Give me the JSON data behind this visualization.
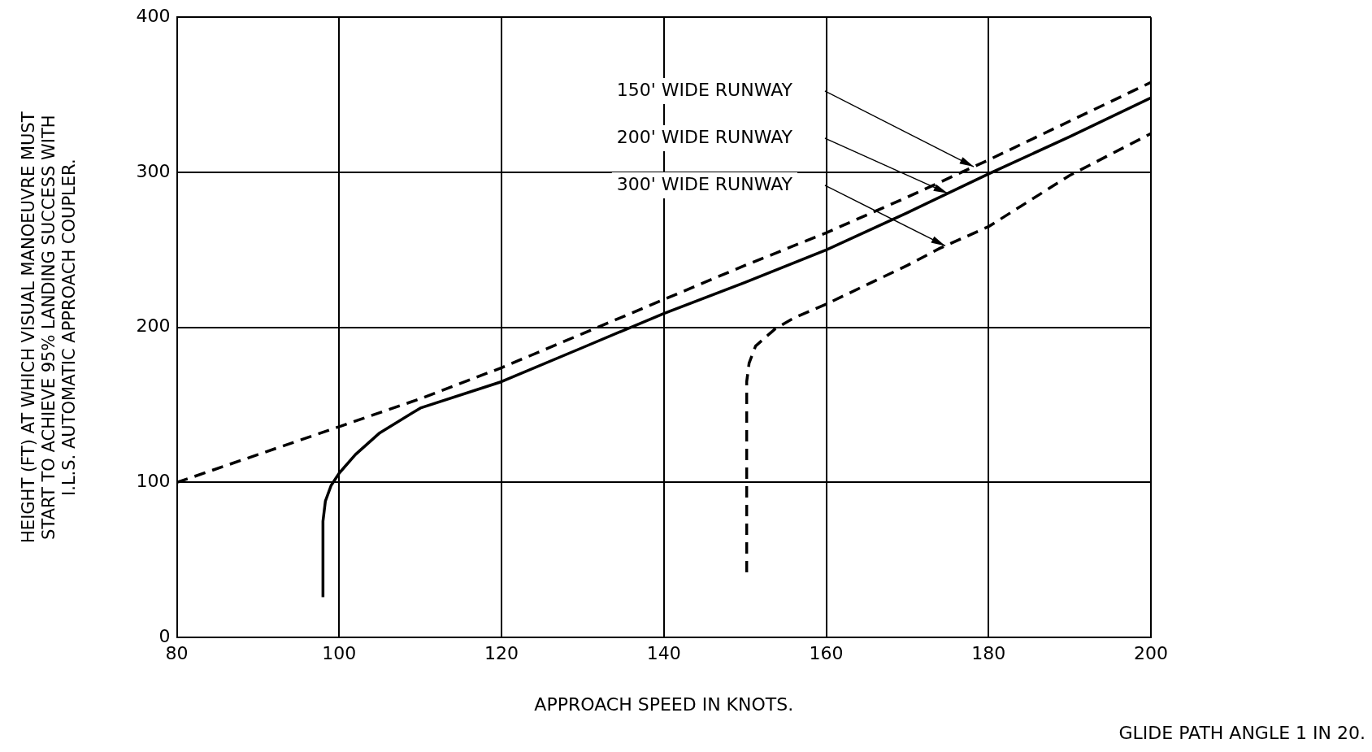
{
  "chart_data": {
    "type": "line",
    "xlabel": "APPROACH SPEED IN KNOTS.",
    "ylabel": "HEIGHT (FT) AT WHICH VISUAL MANOEUVRE MUST\nSTART TO ACHIEVE 95% LANDING SUCCESS WITH\nI.L.S. AUTOMATIC APPROACH COUPLER.",
    "xlim": [
      80,
      200
    ],
    "xticks": [
      80,
      100,
      120,
      140,
      160,
      180,
      200
    ],
    "ylim": [
      0,
      400
    ],
    "yticks": [
      0,
      100,
      200,
      300,
      400
    ],
    "grid": true,
    "legend": false,
    "marker": "none",
    "series": [
      {
        "color": "#000000",
        "line_style": "dashed",
        "x": [
          80,
          90,
          100,
          110,
          120,
          130,
          140,
          150,
          160,
          170,
          180,
          190,
          200
        ],
        "values": [
          100,
          118,
          136,
          154,
          174,
          196,
          218,
          240,
          261,
          284,
          308,
          333,
          358
        ]
      },
      {
        "color": "#000000",
        "line_style": "solid",
        "x": [
          98,
          98,
          98.3,
          99,
          100,
          102,
          105,
          110,
          120,
          130,
          140,
          150,
          160,
          170,
          180,
          190,
          200
        ],
        "values": [
          26,
          75,
          88,
          98,
          106,
          118,
          132,
          148,
          165,
          187,
          209,
          229,
          250,
          274,
          299,
          323,
          348
        ]
      },
      {
        "color": "#000000",
        "line_style": "dashed",
        "x": [
          150.2,
          150.2,
          150.5,
          151.3,
          153.7,
          156,
          160,
          170,
          174,
          180,
          190,
          200
        ],
        "values": [
          42,
          165,
          177,
          188,
          199,
          206,
          215,
          240,
          251,
          265,
          298,
          325
        ]
      }
    ],
    "annotations": [
      "150' WIDE RUNWAY",
      "200' WIDE RUNWAY",
      "300' WIDE RUNWAY",
      "GLIDE PATH ANGLE 1 IN 20."
    ]
  }
}
